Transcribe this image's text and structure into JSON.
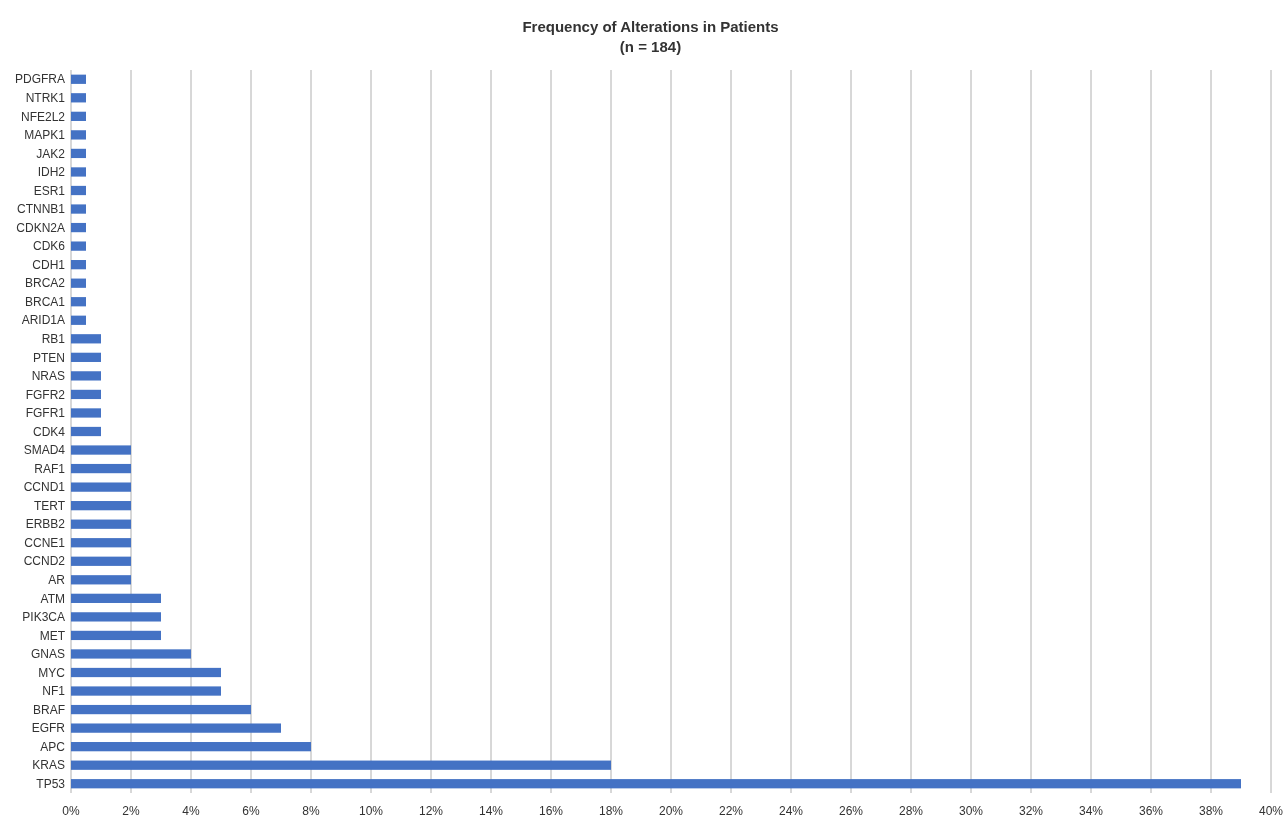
{
  "chart_data": {
    "type": "bar",
    "orientation": "horizontal",
    "title": "Frequency of Alterations in Patients",
    "subtitle": "(n = 184)",
    "categories": [
      "PDGFRA",
      "NTRK1",
      "NFE2L2",
      "MAPK1",
      "JAK2",
      "IDH2",
      "ESR1",
      "CTNNB1",
      "CDKN2A",
      "CDK6",
      "CDH1",
      "BRCA2",
      "BRCA1",
      "ARID1A",
      "RB1",
      "PTEN",
      "NRAS",
      "FGFR2",
      "FGFR1",
      "CDK4",
      "SMAD4",
      "RAF1",
      "CCND1",
      "TERT",
      "ERBB2",
      "CCNE1",
      "CCND2",
      "AR",
      "ATM",
      "PIK3CA",
      "MET",
      "GNAS",
      "MYC",
      "NF1",
      "BRAF",
      "EGFR",
      "APC",
      "KRAS",
      "TP53"
    ],
    "values": [
      0.5,
      0.5,
      0.5,
      0.5,
      0.5,
      0.5,
      0.5,
      0.5,
      0.5,
      0.5,
      0.5,
      0.5,
      0.5,
      0.5,
      1,
      1,
      1,
      1,
      1,
      1,
      2,
      2,
      2,
      2,
      2,
      2,
      2,
      2,
      3,
      3,
      3,
      4,
      5,
      5,
      6,
      7,
      8,
      18,
      39
    ],
    "color": "#4472c4",
    "xlim": [
      0,
      40
    ],
    "xticks": [
      {
        "value": 0,
        "label": "0%"
      },
      {
        "value": 2,
        "label": "2%"
      },
      {
        "value": 4,
        "label": "4%"
      },
      {
        "value": 6,
        "label": "6%"
      },
      {
        "value": 8,
        "label": "8%"
      },
      {
        "value": 10,
        "label": "10%"
      },
      {
        "value": 12,
        "label": "12%"
      },
      {
        "value": 14,
        "label": "14%"
      },
      {
        "value": 16,
        "label": "16%"
      },
      {
        "value": 18,
        "label": "18%"
      },
      {
        "value": 20,
        "label": "20%"
      },
      {
        "value": 22,
        "label": "22%"
      },
      {
        "value": 24,
        "label": "24%"
      },
      {
        "value": 26,
        "label": "26%"
      },
      {
        "value": 28,
        "label": "28%"
      },
      {
        "value": 30,
        "label": "30%"
      },
      {
        "value": 32,
        "label": "32%"
      },
      {
        "value": 34,
        "label": "34%"
      },
      {
        "value": 36,
        "label": "36%"
      },
      {
        "value": 38,
        "label": "38%"
      },
      {
        "value": 40,
        "label": "40%"
      }
    ],
    "grid": "x"
  }
}
